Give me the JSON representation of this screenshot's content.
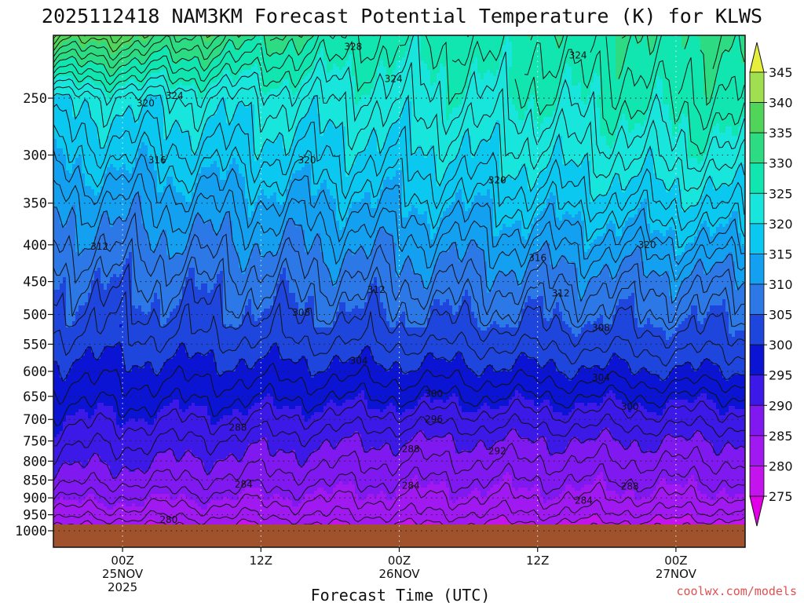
{
  "chart_data": {
    "type": "contour",
    "title": "2025112418 NAM3KM Forecast Potential Temperature (K) for KLWS",
    "xlabel": "Forecast Time (UTC)",
    "ylabel": "",
    "x_range_hours": [
      0,
      60
    ],
    "y_range_hpa": [
      1000,
      200
    ],
    "yticks": [
      "250",
      "300",
      "350",
      "400",
      "450",
      "500",
      "550",
      "600",
      "650",
      "700",
      "750",
      "800",
      "850",
      "900",
      "950",
      "1000"
    ],
    "xticks": [
      {
        "hour": 6,
        "lines": [
          "00Z",
          "25NOV",
          "2025"
        ]
      },
      {
        "hour": 18,
        "lines": [
          "12Z"
        ]
      },
      {
        "hour": 30,
        "lines": [
          "00Z",
          "26NOV"
        ]
      },
      {
        "hour": 42,
        "lines": [
          "12Z"
        ]
      },
      {
        "hour": 54,
        "lines": [
          "00Z",
          "27NOV"
        ]
      }
    ],
    "colorbar": {
      "levels": [
        "275",
        "280",
        "285",
        "290",
        "295",
        "300",
        "305",
        "310",
        "315",
        "320",
        "325",
        "330",
        "335",
        "340",
        "345"
      ],
      "colors": [
        "#e100e6",
        "#c314ee",
        "#a019f0",
        "#8019f0",
        "#3c19e6",
        "#0a14d2",
        "#1e46dc",
        "#2c78e6",
        "#14a0f0",
        "#0ac8f0",
        "#18e6dc",
        "#12e6b0",
        "#2ddc82",
        "#50d55a",
        "#a0e050",
        "#e6f03c"
      ]
    },
    "theta_profiles_K": {
      "pressure_hpa": [
        1000,
        950,
        900,
        850,
        800,
        750,
        700,
        650,
        600,
        550,
        500,
        450,
        400,
        350,
        300,
        250,
        200
      ],
      "hour_0": [
        279,
        283,
        286,
        289,
        291,
        293,
        295,
        297,
        299,
        301,
        303,
        305,
        308,
        311,
        316,
        321,
        341
      ],
      "hour_30": [
        279,
        282,
        284,
        286,
        288,
        290,
        293,
        296,
        299,
        302,
        305,
        308,
        311,
        315,
        319,
        323,
        327
      ],
      "hour_60": [
        277,
        281,
        284,
        286,
        288,
        290,
        293,
        296,
        300,
        303,
        306,
        309,
        314,
        319,
        324,
        328,
        331
      ]
    },
    "contour_labels": [
      {
        "text": "328",
        "hour": 26,
        "hpa": 212
      },
      {
        "text": "324",
        "hour": 45.5,
        "hpa": 218
      },
      {
        "text": "324",
        "hour": 29.5,
        "hpa": 235
      },
      {
        "text": "320",
        "hour": 8,
        "hpa": 254
      },
      {
        "text": "324",
        "hour": 10.5,
        "hpa": 248
      },
      {
        "text": "316",
        "hour": 9,
        "hpa": 305
      },
      {
        "text": "320",
        "hour": 22,
        "hpa": 305
      },
      {
        "text": "320",
        "hour": 38.5,
        "hpa": 325
      },
      {
        "text": "320",
        "hour": 51.5,
        "hpa": 400
      },
      {
        "text": "312",
        "hour": 4,
        "hpa": 402
      },
      {
        "text": "316",
        "hour": 42,
        "hpa": 417
      },
      {
        "text": "312",
        "hour": 28,
        "hpa": 462
      },
      {
        "text": "312",
        "hour": 44,
        "hpa": 467
      },
      {
        "text": "308",
        "hour": 21.5,
        "hpa": 497
      },
      {
        "text": "308",
        "hour": 47.5,
        "hpa": 522
      },
      {
        "text": "304",
        "hour": 26.5,
        "hpa": 580
      },
      {
        "text": "304",
        "hour": 47.5,
        "hpa": 612
      },
      {
        "text": "300",
        "hour": 33,
        "hpa": 645
      },
      {
        "text": "300",
        "hour": 50,
        "hpa": 672
      },
      {
        "text": "296",
        "hour": 33,
        "hpa": 700
      },
      {
        "text": "288",
        "hour": 16,
        "hpa": 718
      },
      {
        "text": "288",
        "hour": 31,
        "hpa": 770
      },
      {
        "text": "292",
        "hour": 38.5,
        "hpa": 775
      },
      {
        "text": "284",
        "hour": 16.5,
        "hpa": 862
      },
      {
        "text": "284",
        "hour": 31,
        "hpa": 865
      },
      {
        "text": "288",
        "hour": 50,
        "hpa": 868
      },
      {
        "text": "284",
        "hour": 46,
        "hpa": 908
      },
      {
        "text": "280",
        "hour": 10,
        "hpa": 965
      }
    ],
    "surface_color": "#a0522d",
    "grid": "dotted"
  },
  "credit": {
    "text": "coolwx.com/models",
    "color": "#e05050"
  }
}
